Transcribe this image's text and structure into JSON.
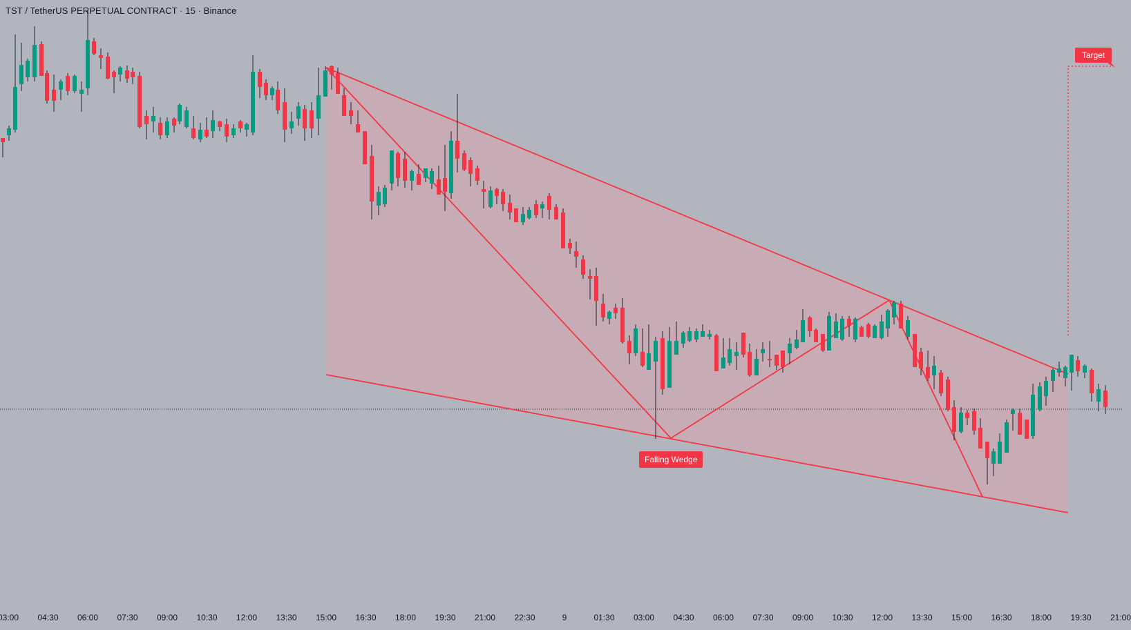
{
  "header": {
    "symbol_title": "TST / TetherUS PERPETUAL CONTRACT · 15 · Binance"
  },
  "pattern": {
    "label": "Falling Wedge",
    "target_label": "Target"
  },
  "colors": {
    "background": "#b2b5be",
    "up_candle": "#089981",
    "down_candle": "#f23645",
    "pattern_line": "#f23645",
    "pattern_fill": "#d8a4ad"
  },
  "time_axis": {
    "ticks": [
      "03:00",
      "04:30",
      "06:00",
      "07:30",
      "09:00",
      "10:30",
      "12:00",
      "13:30",
      "15:00",
      "16:30",
      "18:00",
      "19:30",
      "21:00",
      "22:30",
      "9",
      "01:30",
      "03:00",
      "04:30",
      "06:00",
      "07:30",
      "09:00",
      "10:30",
      "12:00",
      "13:30",
      "15:00",
      "16:30",
      "18:00",
      "19:30",
      "21:00"
    ]
  }
}
